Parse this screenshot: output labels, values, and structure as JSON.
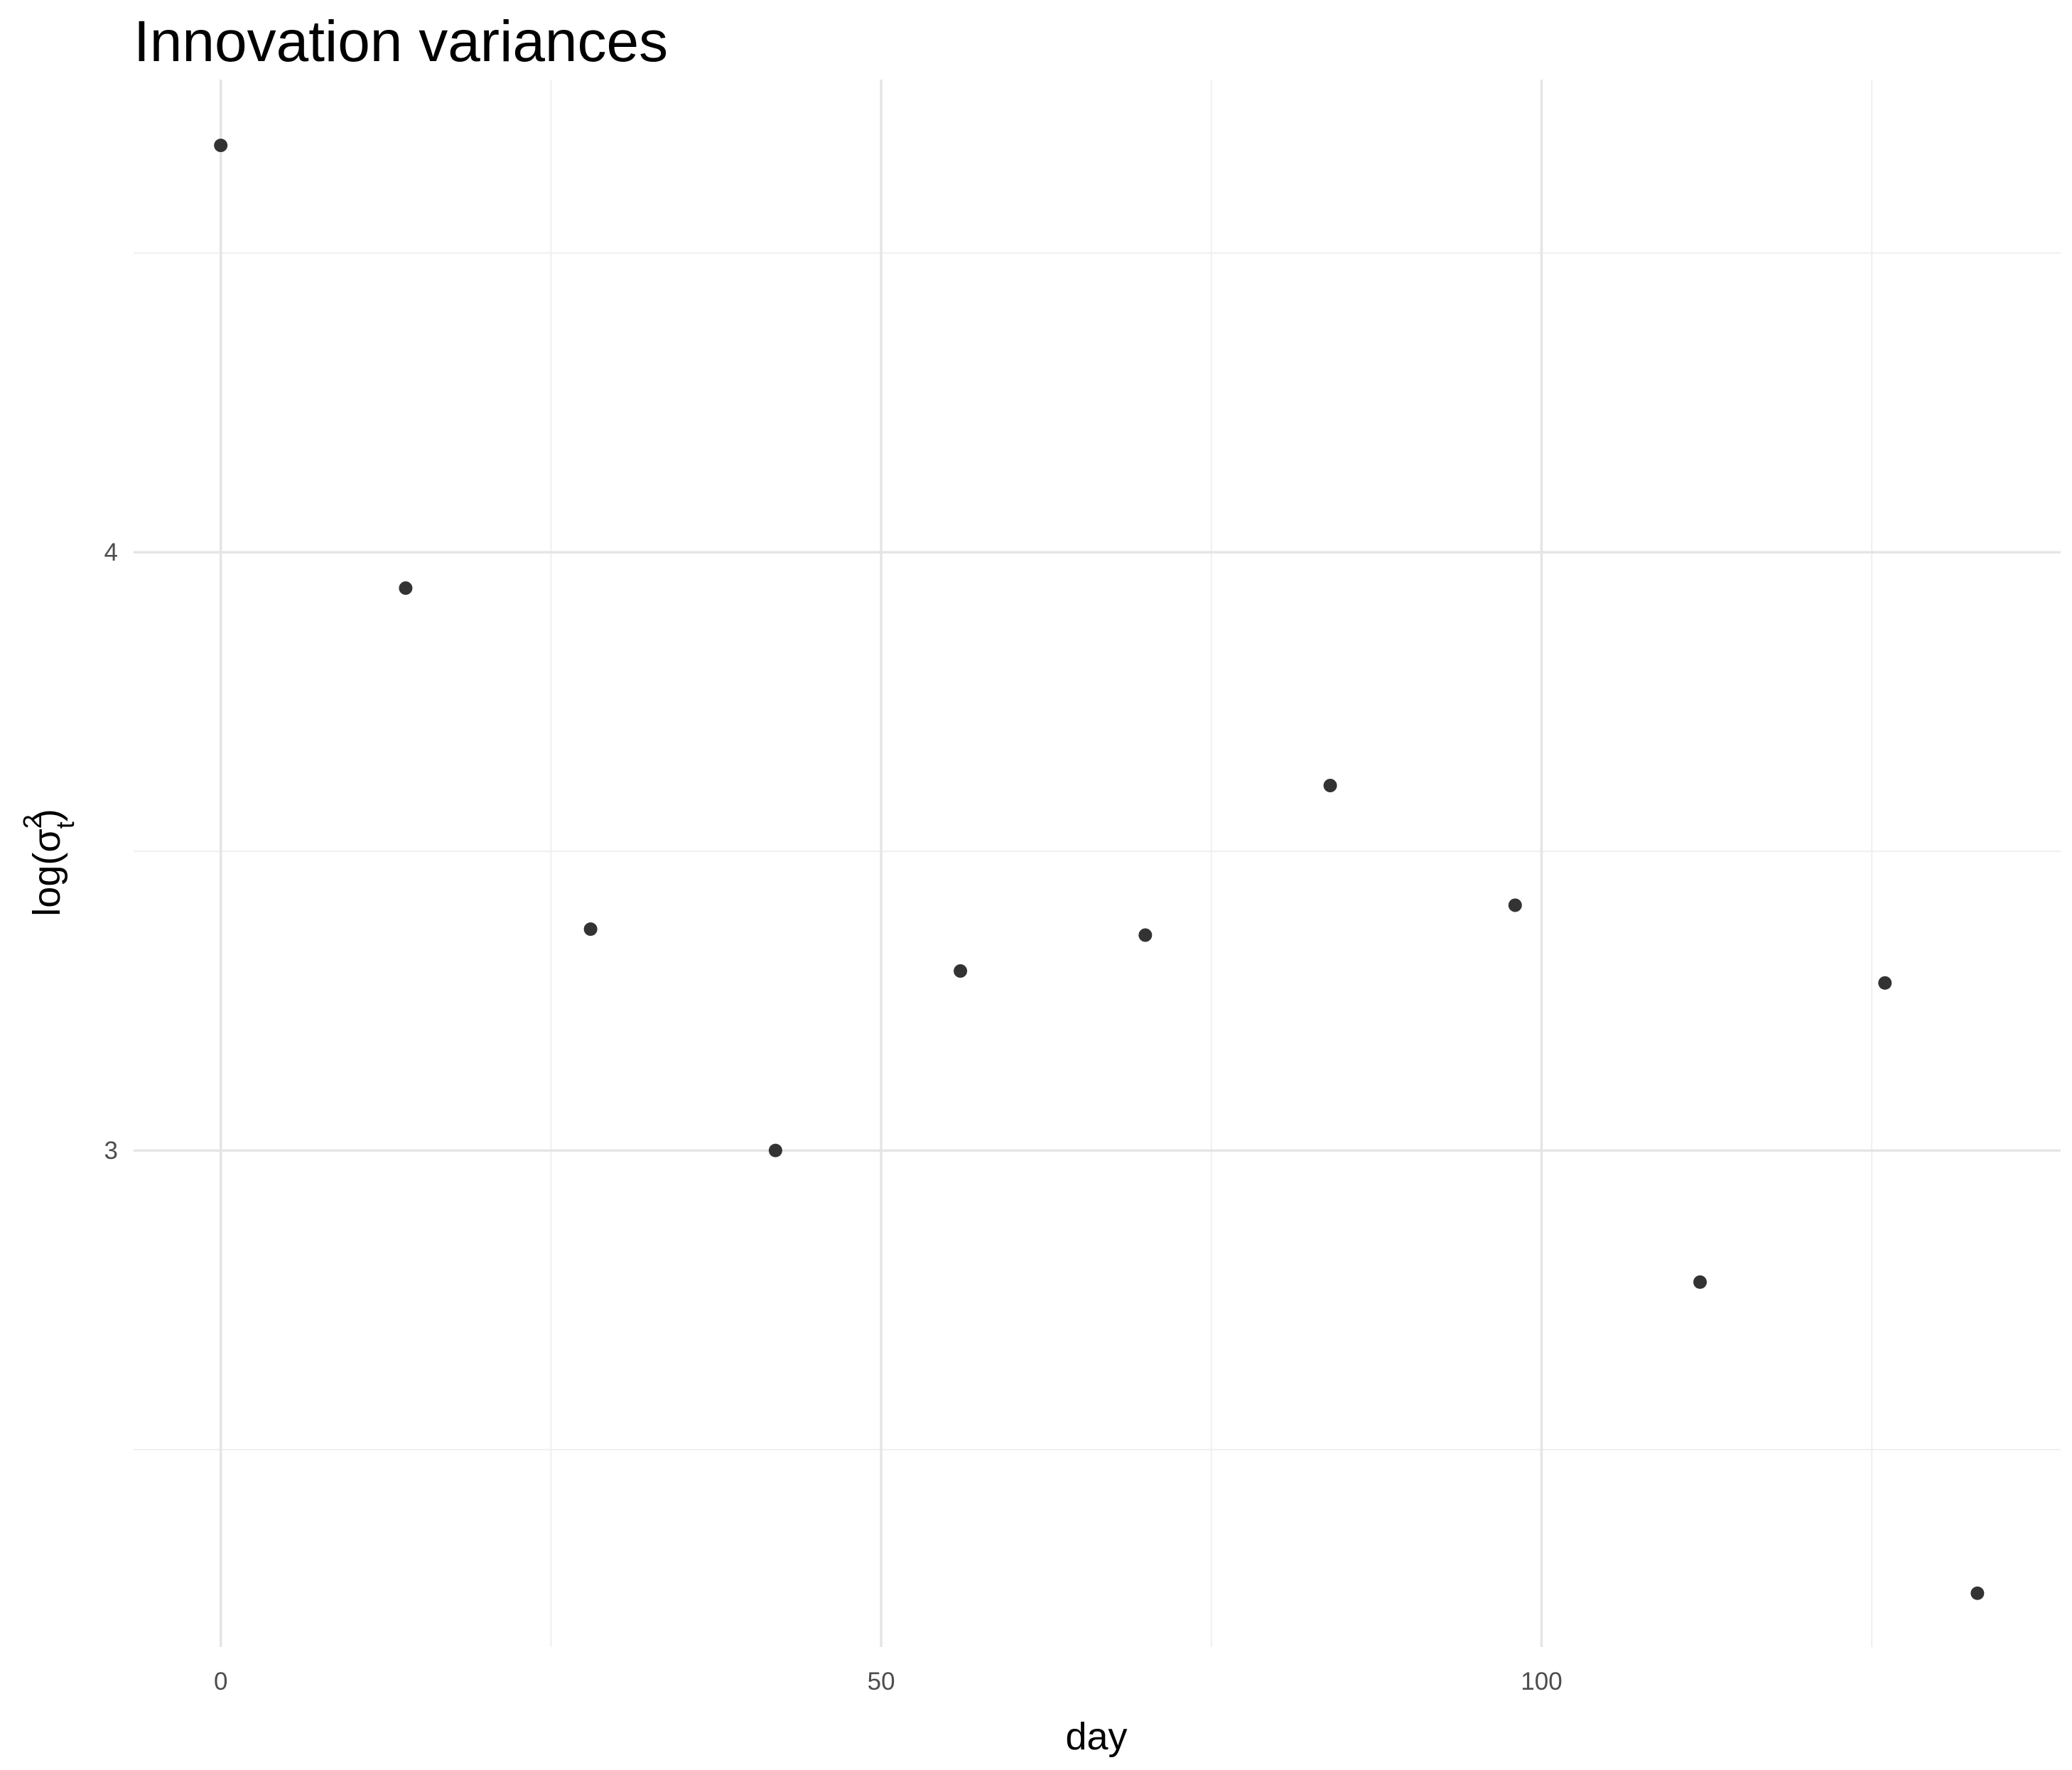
{
  "chart_data": {
    "type": "scatter",
    "title": "Innovation variances",
    "xlabel": "day",
    "ylabel": {
      "base": "log(",
      "symbol": "σ",
      "superscript": "2",
      "subscript": "t",
      "close": ")"
    },
    "xlim": [
      -6.6,
      139.3
    ],
    "ylim": [
      2.17,
      4.79
    ],
    "x_ticks": [
      0,
      50,
      100
    ],
    "x_tick_labels": [
      "0",
      "50",
      "100"
    ],
    "x_minor_ticks": [
      25,
      75,
      125
    ],
    "y_ticks": [
      3,
      4
    ],
    "y_tick_labels": [
      "3",
      "4"
    ],
    "y_minor_ticks": [
      2.5,
      3.5,
      4.5
    ],
    "grid": true,
    "legend": "none",
    "point_color": "#333333",
    "points": [
      {
        "x": 0,
        "y": 4.68
      },
      {
        "x": 14,
        "y": 3.94
      },
      {
        "x": 28,
        "y": 3.37
      },
      {
        "x": 42,
        "y": 3.0
      },
      {
        "x": 56,
        "y": 3.3
      },
      {
        "x": 70,
        "y": 3.36
      },
      {
        "x": 84,
        "y": 3.61
      },
      {
        "x": 98,
        "y": 3.41
      },
      {
        "x": 112,
        "y": 2.78
      },
      {
        "x": 126,
        "y": 3.28
      },
      {
        "x": 133,
        "y": 2.26
      }
    ]
  }
}
